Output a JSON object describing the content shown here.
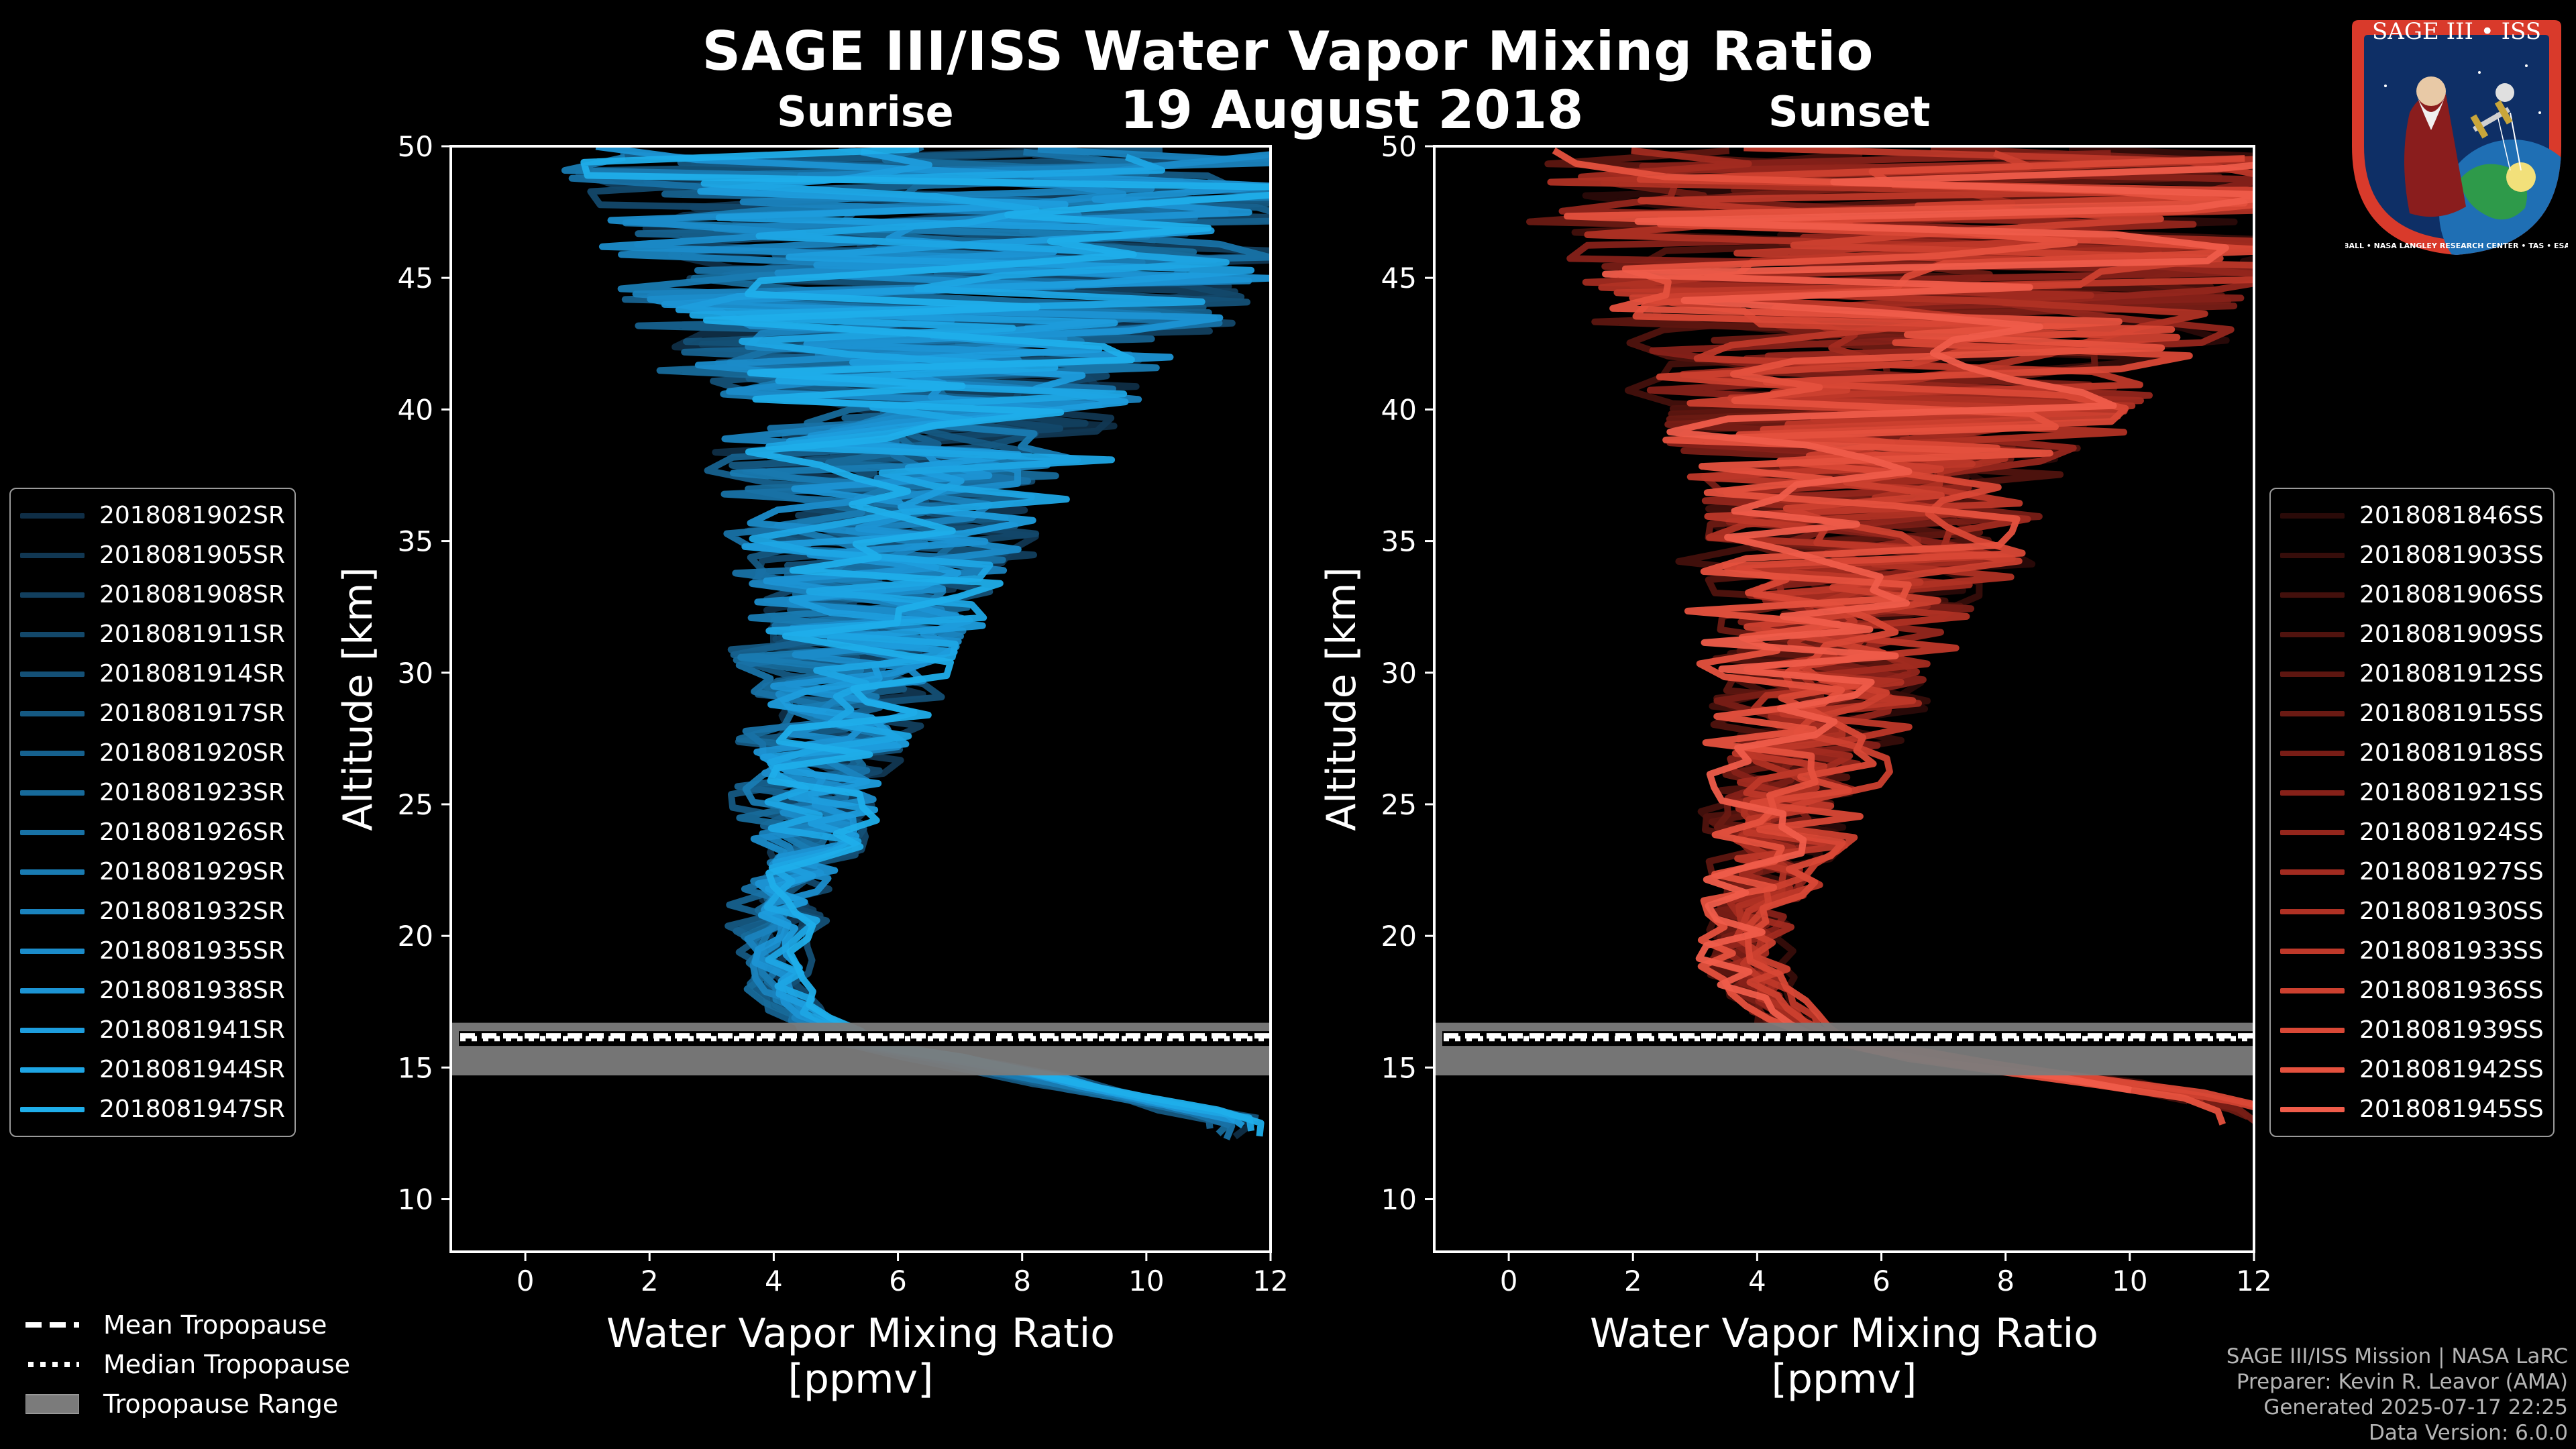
{
  "title": "SAGE III/ISS Water Vapor Mixing Ratio",
  "date": "19 August 2018",
  "logo": {
    "text": "SAGE III • ISS",
    "ring_text": "BALL • NASA LANGLEY RESEARCH CENTER • TAS • ESA"
  },
  "colors": {
    "background": "#000000",
    "sunrise": "#1b8fd6",
    "sunset": "#ef5c4a",
    "tropopause_range": "#7b7b7b"
  },
  "footer": {
    "line1": "SAGE III/ISS Mission | NASA LaRC",
    "line2": "Preparer: Kevin R. Leavor (AMA)",
    "line3": "Generated 2025-07-17 22:25",
    "line4": "Data Version: 6.0.0"
  },
  "bottom_legend": {
    "mean": "Mean Tropopause",
    "median": "Median Tropopause",
    "range": "Tropopause Range"
  },
  "chart_data": [
    {
      "type": "line",
      "panel": "sunrise",
      "subtitle": "Sunrise",
      "xlabel": "Water Vapor Mixing Ratio",
      "xlabel_units": "[ppmv]",
      "ylabel": "Altitude [km]",
      "xlim": [
        -1.2,
        12
      ],
      "ylim": [
        8,
        50
      ],
      "xticks": [
        0,
        2,
        4,
        6,
        8,
        10,
        12
      ],
      "yticks": [
        10,
        15,
        20,
        25,
        30,
        35,
        40,
        45,
        50
      ],
      "tropopause": {
        "mean_km": 16.1,
        "median_km": 16.2,
        "range_km": [
          14.7,
          16.7
        ]
      },
      "series_names": [
        "2018081902SR",
        "2018081905SR",
        "2018081908SR",
        "2018081911SR",
        "2018081914SR",
        "2018081917SR",
        "2018081920SR",
        "2018081923SR",
        "2018081926SR",
        "2018081929SR",
        "2018081932SR",
        "2018081935SR",
        "2018081938SR",
        "2018081941SR",
        "2018081944SR",
        "2018081947SR"
      ],
      "series_colors": [
        "#0f2e46",
        "#113752",
        "#123f5e",
        "#13486a",
        "#145076",
        "#155982",
        "#16618e",
        "#176a9a",
        "#1872a6",
        "#197bb2",
        "#1a83be",
        "#1b8cca",
        "#1c94d4",
        "#1d9ddd",
        "#1ea5e4",
        "#1faeea"
      ],
      "representative_profile": {
        "altitude_km": [
          13,
          14,
          15,
          16,
          17,
          18,
          19,
          20,
          22,
          24,
          26,
          28,
          30,
          32,
          34,
          36,
          38,
          40,
          42,
          44,
          46,
          48,
          50
        ],
        "h2o_ppmv": [
          11.5,
          9.5,
          7.5,
          5.2,
          4.5,
          4.1,
          3.9,
          4.0,
          4.2,
          4.5,
          4.7,
          4.9,
          5.1,
          5.4,
          5.6,
          5.9,
          6.1,
          6.3,
          6.5,
          6.7,
          6.9,
          7.0,
          7.0
        ]
      },
      "noise_amplitude_ppmv": {
        "at_20km": 0.4,
        "at_30km": 1.5,
        "at_40km": 3.5,
        "at_48km": 6.5
      }
    },
    {
      "type": "line",
      "panel": "sunset",
      "subtitle": "Sunset",
      "xlabel": "Water Vapor Mixing Ratio",
      "xlabel_units": "[ppmv]",
      "ylabel": "Altitude [km]",
      "xlim": [
        -1.2,
        12
      ],
      "ylim": [
        8,
        50
      ],
      "xticks": [
        0,
        2,
        4,
        6,
        8,
        10,
        12
      ],
      "yticks": [
        10,
        15,
        20,
        25,
        30,
        35,
        40,
        45,
        50
      ],
      "tropopause": {
        "mean_km": 16.1,
        "median_km": 16.2,
        "range_km": [
          14.7,
          16.7
        ]
      },
      "series_names": [
        "2018081846SS",
        "2018081903SS",
        "2018081906SS",
        "2018081909SS",
        "2018081912SS",
        "2018081915SS",
        "2018081918SS",
        "2018081921SS",
        "2018081924SS",
        "2018081927SS",
        "2018081930SS",
        "2018081933SS",
        "2018081936SS",
        "2018081939SS",
        "2018081942SS",
        "2018081945SS"
      ],
      "series_colors": [
        "#2a0a08",
        "#360d0a",
        "#43100c",
        "#50130e",
        "#5d1610",
        "#6a1a13",
        "#781d16",
        "#862119",
        "#94261c",
        "#a22b20",
        "#b03124",
        "#be3829",
        "#cc402f",
        "#d94836",
        "#e5513e",
        "#ef5c4a"
      ],
      "representative_profile": {
        "altitude_km": [
          13.5,
          14.5,
          15,
          16,
          17,
          18,
          19,
          20,
          22,
          24,
          26,
          28,
          30,
          32,
          34,
          36,
          38,
          40,
          42,
          44,
          46,
          48,
          50
        ],
        "h2o_ppmv": [
          12,
          9.5,
          7.8,
          5.3,
          4.4,
          4.0,
          3.8,
          3.9,
          4.2,
          4.4,
          4.6,
          4.9,
          5.1,
          5.3,
          5.6,
          5.8,
          6.0,
          6.3,
          6.5,
          6.7,
          6.9,
          7.0,
          7.0
        ]
      },
      "noise_amplitude_ppmv": {
        "at_20km": 0.5,
        "at_30km": 1.7,
        "at_40km": 3.8,
        "at_48km": 7.0
      }
    }
  ]
}
